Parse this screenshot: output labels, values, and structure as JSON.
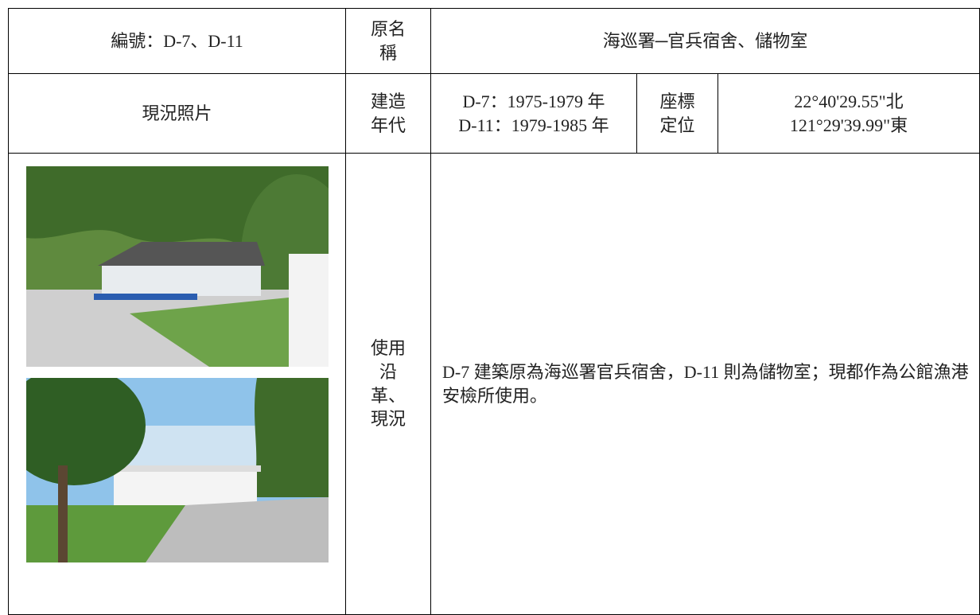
{
  "table": {
    "rows": [
      [
        "編號：D-7、D-11",
        "原名稱",
        "海巡署─官兵宿舍、儲物室"
      ],
      [
        "現況照片",
        "建造年代",
        [
          "D-7：1975-1979 年",
          "D-11：1979-1985 年"
        ],
        "座標定位",
        [
          "22°40'29.55\"北",
          "121°29'39.99\"東"
        ]
      ],
      [
        "使用沿革、現況",
        "D-7 建築原為海巡署官兵宿舍，D-11 則為儲物室；現都作為公館漁港安檢所使用。"
      ]
    ]
  }
}
